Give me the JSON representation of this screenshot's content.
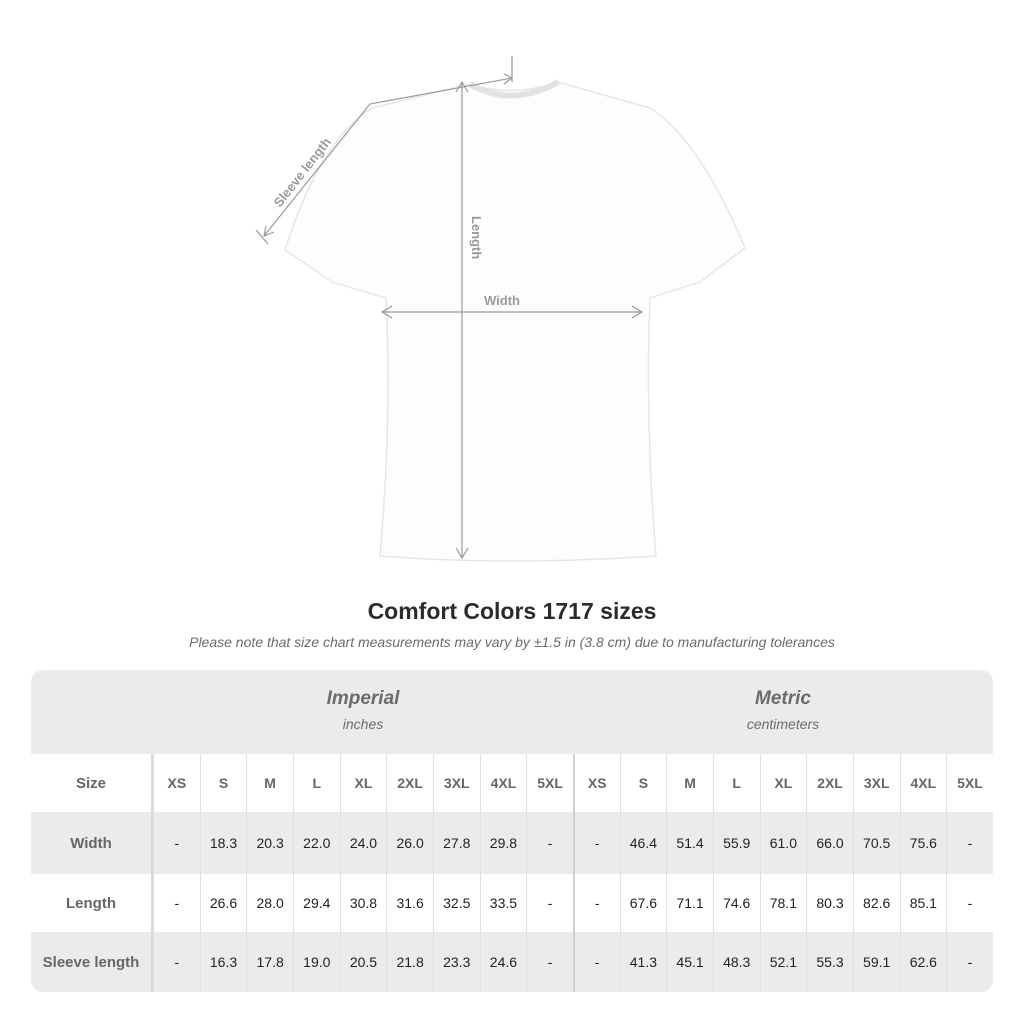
{
  "diagram": {
    "labels": {
      "sleeve": "Sleeve length",
      "length": "Length",
      "width": "Width"
    },
    "shirt_color": "#ffffff",
    "arrow_color": "#9a9a9a"
  },
  "title": "Comfort Colors 1717 sizes",
  "note": "Please note that size chart measurements may vary by ±1.5 in (3.8 cm) due to manufacturing tolerances",
  "table": {
    "imperial": {
      "name": "Imperial",
      "unit": "inches"
    },
    "metric": {
      "name": "Metric",
      "unit": "centimeters"
    },
    "size_label": "Size",
    "sizes": [
      "XS",
      "S",
      "M",
      "L",
      "XL",
      "2XL",
      "3XL",
      "4XL",
      "5XL"
    ],
    "rows": [
      {
        "label": "Width",
        "imperial": [
          "-",
          "18.3",
          "20.3",
          "22.0",
          "24.0",
          "26.0",
          "27.8",
          "29.8",
          "-"
        ],
        "metric": [
          "-",
          "46.4",
          "51.4",
          "55.9",
          "61.0",
          "66.0",
          "70.5",
          "75.6",
          "-"
        ]
      },
      {
        "label": "Length",
        "imperial": [
          "-",
          "26.6",
          "28.0",
          "29.4",
          "30.8",
          "31.6",
          "32.5",
          "33.5",
          "-"
        ],
        "metric": [
          "-",
          "67.6",
          "71.1",
          "74.6",
          "78.1",
          "80.3",
          "82.6",
          "85.1",
          "-"
        ]
      },
      {
        "label": "Sleeve length",
        "imperial": [
          "-",
          "16.3",
          "17.8",
          "19.0",
          "20.5",
          "21.8",
          "23.3",
          "24.6",
          "-"
        ],
        "metric": [
          "-",
          "41.3",
          "45.1",
          "48.3",
          "52.1",
          "55.3",
          "59.1",
          "62.6",
          "-"
        ]
      }
    ]
  }
}
